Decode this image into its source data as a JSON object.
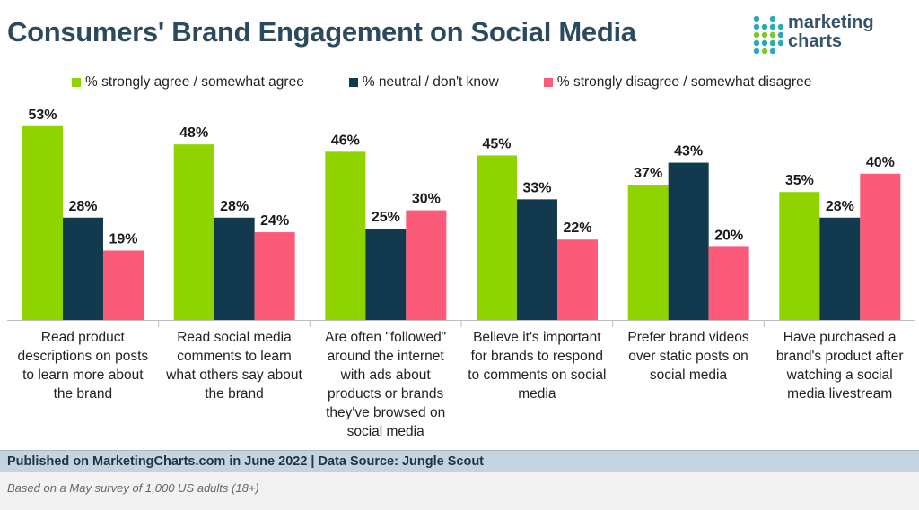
{
  "header": {
    "title": "Consumers' Brand Engagement on Social Media",
    "logo_line1": "marketing",
    "logo_line2": "charts"
  },
  "colors": {
    "agree": "#8fd400",
    "neutral": "#12394e",
    "disagree": "#fb5a78",
    "title": "#2c4a5e"
  },
  "chart_data": {
    "type": "bar",
    "title": "Consumers' Brand Engagement on Social Media",
    "xlabel": "",
    "ylabel": "",
    "ylim": [
      0,
      60
    ],
    "grid": false,
    "legend_position": "top",
    "categories": [
      "Read product descriptions on posts to learn more about the brand",
      "Read social media comments to learn what others say about the brand",
      "Are often \"followed\" around the internet with ads about products or brands they've browsed on social media",
      "Believe it's important for brands to respond to comments on social media",
      "Prefer brand videos over static posts on social media",
      "Have purchased a brand's product after watching a social media livestream"
    ],
    "category_lines": [
      [
        "Read product",
        "descriptions on posts",
        "to learn more about",
        "the brand"
      ],
      [
        "Read social media",
        "comments to learn",
        "what others say about",
        "the brand"
      ],
      [
        "Are often \"followed\"",
        "around the internet",
        "with ads about",
        "products or brands",
        "they've browsed on",
        "social media"
      ],
      [
        "Believe it's important",
        "for brands to respond",
        "to comments on social",
        "media"
      ],
      [
        "Prefer brand videos",
        "over static posts on",
        "social media"
      ],
      [
        "Have purchased a",
        "brand's product after",
        "watching a social",
        "media livestream"
      ]
    ],
    "series": [
      {
        "name": "% strongly agree / somewhat agree",
        "values": [
          53,
          48,
          46,
          45,
          37,
          35
        ]
      },
      {
        "name": "% neutral / don't know",
        "values": [
          28,
          28,
          25,
          33,
          43,
          28
        ]
      },
      {
        "name": "% strongly disagree / somewhat disagree",
        "values": [
          19,
          24,
          30,
          22,
          20,
          40
        ]
      }
    ],
    "value_suffix": "%"
  },
  "footer": {
    "published": "Published on MarketingCharts.com in June 2022 | Data Source: Jungle Scout",
    "note": "Based on a May survey of 1,000 US adults (18+)"
  }
}
